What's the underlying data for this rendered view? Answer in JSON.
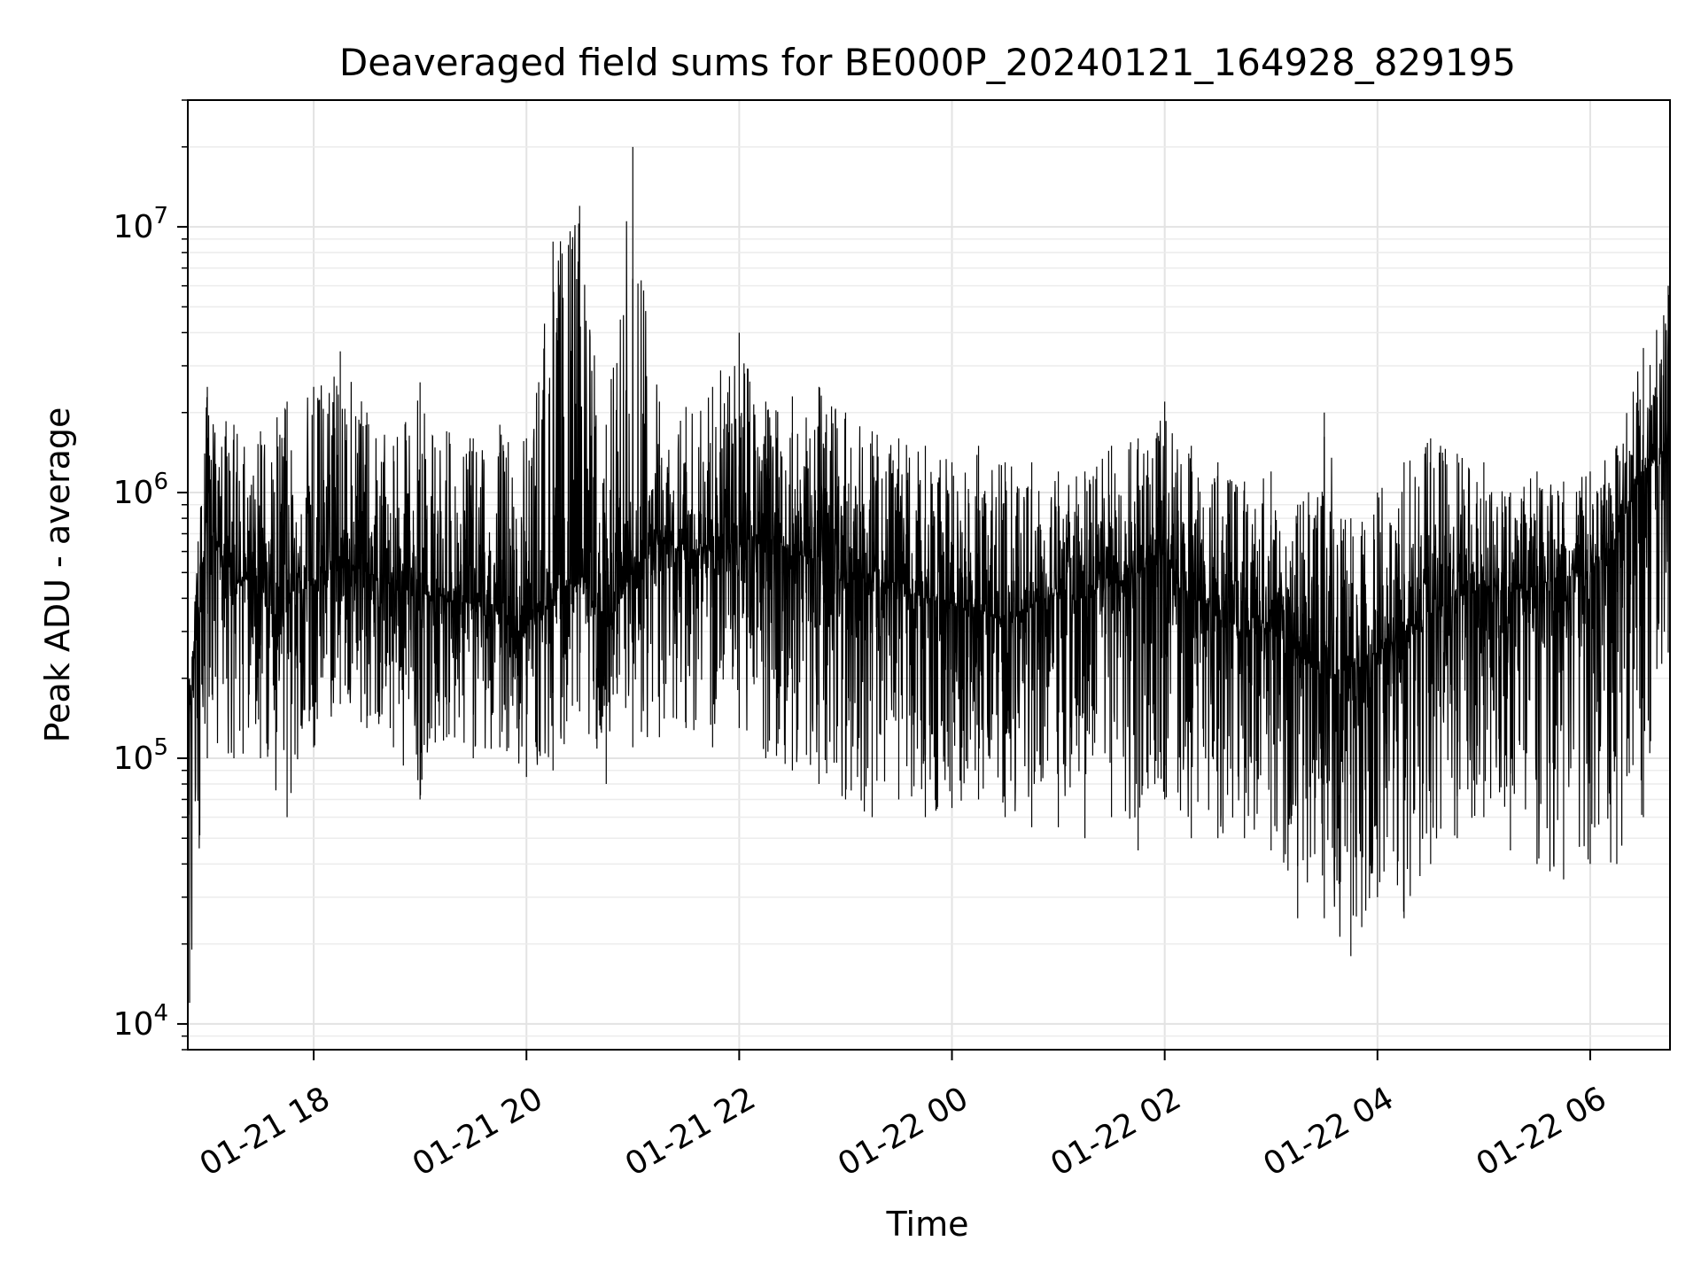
{
  "chart_data": {
    "type": "line",
    "title": "Deaveraged field sums for BE000P_20240121_164928_829195",
    "xlabel": "Time",
    "ylabel": "Peak ADU - average",
    "x_scale": "time",
    "y_scale": "log",
    "xlim": [
      "2024-01-21 16:49",
      "2024-01-22 06:45"
    ],
    "ylim": [
      8000,
      30000000
    ],
    "x_ticks": [
      {
        "value": "2024-01-21 18:00",
        "label": "01-21 18"
      },
      {
        "value": "2024-01-21 20:00",
        "label": "01-21 20"
      },
      {
        "value": "2024-01-21 22:00",
        "label": "01-21 22"
      },
      {
        "value": "2024-01-22 00:00",
        "label": "01-22 00"
      },
      {
        "value": "2024-01-22 02:00",
        "label": "01-22 02"
      },
      {
        "value": "2024-01-22 04:00",
        "label": "01-22 04"
      },
      {
        "value": "2024-01-22 06:00",
        "label": "01-22 06"
      }
    ],
    "y_ticks": [
      {
        "value": 10000,
        "base": "10",
        "exp": "4"
      },
      {
        "value": 100000,
        "base": "10",
        "exp": "5"
      },
      {
        "value": 1000000,
        "base": "10",
        "exp": "6"
      },
      {
        "value": 10000000,
        "base": "10",
        "exp": "7"
      }
    ],
    "grid": true,
    "line_color": "#000000",
    "series": [
      {
        "x": [
          "2024-01-21 16:50",
          "2024-01-21 17:00",
          "2024-01-21 17:15",
          "2024-01-21 17:30",
          "2024-01-21 17:45",
          "2024-01-21 18:00",
          "2024-01-21 18:15",
          "2024-01-21 18:30",
          "2024-01-21 18:45",
          "2024-01-21 19:00",
          "2024-01-21 19:15",
          "2024-01-21 19:30",
          "2024-01-21 19:45",
          "2024-01-21 20:00",
          "2024-01-21 20:15",
          "2024-01-21 20:30",
          "2024-01-21 20:45",
          "2024-01-21 21:00",
          "2024-01-21 21:15",
          "2024-01-21 21:30",
          "2024-01-21 21:45",
          "2024-01-21 22:00",
          "2024-01-21 22:15",
          "2024-01-21 22:30",
          "2024-01-21 22:45",
          "2024-01-21 23:00",
          "2024-01-21 23:15",
          "2024-01-21 23:30",
          "2024-01-21 23:45",
          "2024-01-22 00:00",
          "2024-01-22 00:15",
          "2024-01-22 00:30",
          "2024-01-22 00:45",
          "2024-01-22 01:00",
          "2024-01-22 01:15",
          "2024-01-22 01:30",
          "2024-01-22 01:45",
          "2024-01-22 02:00",
          "2024-01-22 02:15",
          "2024-01-22 02:30",
          "2024-01-22 02:45",
          "2024-01-22 03:00",
          "2024-01-22 03:15",
          "2024-01-22 03:30",
          "2024-01-22 03:45",
          "2024-01-22 04:00",
          "2024-01-22 04:15",
          "2024-01-22 04:30",
          "2024-01-22 04:45",
          "2024-01-22 05:00",
          "2024-01-22 05:15",
          "2024-01-22 05:30",
          "2024-01-22 05:45",
          "2024-01-22 06:00",
          "2024-01-22 06:15",
          "2024-01-22 06:30",
          "2024-01-22 06:44"
        ],
        "y": [
          150000,
          800000,
          450000,
          500000,
          420000,
          450000,
          550000,
          500000,
          450000,
          420000,
          400000,
          380000,
          350000,
          320000,
          400000,
          500000,
          300000,
          500000,
          650000,
          600000,
          620000,
          650000,
          700000,
          600000,
          550000,
          500000,
          450000,
          420000,
          400000,
          380000,
          350000,
          330000,
          380000,
          420000,
          400000,
          450000,
          500000,
          600000,
          400000,
          350000,
          300000,
          320000,
          250000,
          200000,
          220000,
          250000,
          300000,
          350000,
          400000,
          450000,
          420000,
          450000,
          480000,
          500000,
          700000,
          1200000,
          1500000
        ],
        "y_high": [
          200000,
          2500000,
          1800000,
          1700000,
          2200000,
          2500000,
          3400000,
          2000000,
          1500000,
          2600000,
          1700000,
          1600000,
          1800000,
          1600000,
          8800000,
          12000000,
          1800000,
          20000000,
          2200000,
          2100000,
          2500000,
          4000000,
          2200000,
          2300000,
          2500000,
          2000000,
          1700000,
          1600000,
          1500000,
          1300000,
          1500000,
          1300000,
          1300000,
          1200000,
          1200000,
          1500000,
          1600000,
          2200000,
          1500000,
          1300000,
          1100000,
          1200000,
          900000,
          2000000,
          800000,
          1000000,
          1300000,
          1600000,
          1400000,
          1300000,
          1000000,
          1200000,
          1100000,
          1200000,
          1500000,
          3500000,
          6000000
        ],
        "y_low": [
          12000,
          100000,
          100000,
          100000,
          60000,
          110000,
          160000,
          130000,
          110000,
          70000,
          120000,
          100000,
          110000,
          85000,
          90000,
          150000,
          80000,
          110000,
          120000,
          130000,
          110000,
          130000,
          100000,
          90000,
          80000,
          70000,
          60000,
          70000,
          60000,
          65000,
          70000,
          60000,
          55000,
          55000,
          50000,
          60000,
          45000,
          70000,
          50000,
          50000,
          50000,
          45000,
          25000,
          25000,
          18000,
          30000,
          25000,
          40000,
          50000,
          60000,
          45000,
          40000,
          35000,
          40000,
          40000,
          60000,
          250000
        ]
      }
    ]
  }
}
